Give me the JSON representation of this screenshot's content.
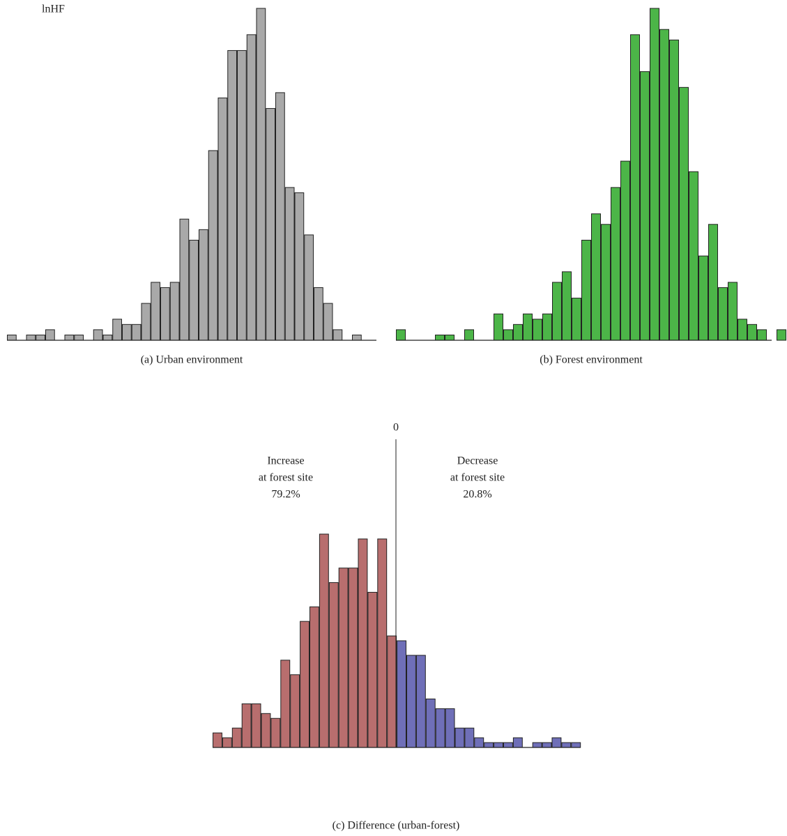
{
  "chart_data": [
    {
      "type": "bar",
      "ylabel": "lnHF",
      "caption": "(a)  Urban environment",
      "color": "#a9a9a9",
      "values": [
        1,
        0,
        1,
        1,
        2,
        0,
        1,
        1,
        0,
        2,
        1,
        4,
        3,
        3,
        7,
        11,
        10,
        11,
        23,
        19,
        21,
        36,
        46,
        55,
        55,
        58,
        63,
        44,
        47,
        29,
        28,
        20,
        10,
        7,
        2,
        0,
        1
      ],
      "ylim": [
        0,
        63
      ]
    },
    {
      "type": "bar",
      "caption": "(b)  Forest environment",
      "color": "#4cb548",
      "values": [
        2,
        0,
        0,
        0,
        1,
        1,
        0,
        2,
        0,
        0,
        5,
        2,
        3,
        5,
        4,
        5,
        11,
        13,
        8,
        19,
        24,
        22,
        29,
        34,
        58,
        51,
        63,
        59,
        57,
        48,
        32,
        16,
        22,
        10,
        11,
        4,
        3,
        2,
        0,
        2
      ],
      "ylim": [
        0,
        63
      ]
    },
    {
      "type": "bar",
      "caption": "(c)  Difference (urban-forest)",
      "zero_label": "0",
      "annotations": [
        {
          "lines": [
            "Increase",
            "at forest site",
            "79.2%"
          ]
        },
        {
          "lines": [
            "Decrease",
            "at forest site",
            "20.8%"
          ]
        }
      ],
      "series": [
        {
          "color": "#b86e6e",
          "values": [
            3,
            2,
            4,
            9,
            9,
            7,
            6,
            18,
            15,
            26,
            29,
            44,
            34,
            37,
            37,
            43,
            32,
            43,
            23
          ]
        },
        {
          "color": "#6f6fb8",
          "values": [
            22,
            19,
            19,
            10,
            8,
            8,
            4,
            4,
            2,
            1,
            1,
            1,
            2,
            0,
            1,
            1,
            2,
            1,
            1
          ]
        }
      ],
      "ylim": [
        0,
        44
      ]
    }
  ]
}
